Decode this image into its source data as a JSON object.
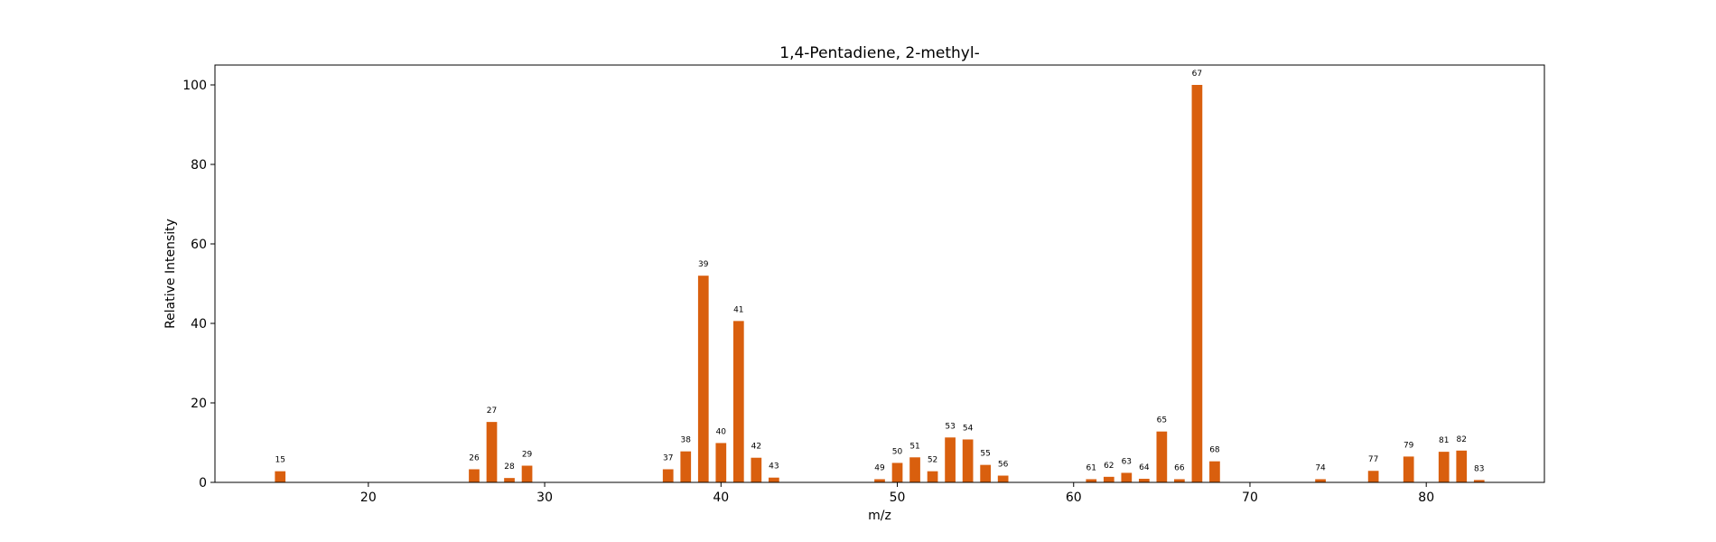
{
  "chart_data": {
    "type": "bar",
    "title": "1,4-Pentadiene, 2-methyl-",
    "xlabel": "m/z",
    "ylabel": "Relative Intensity",
    "xlim": [
      11.3,
      86.7
    ],
    "ylim": [
      0,
      105
    ],
    "xticks": [
      20,
      30,
      40,
      50,
      60,
      70,
      80
    ],
    "yticks": [
      0,
      20,
      40,
      60,
      80,
      100
    ],
    "bar_color": "#d95f0e",
    "legend": "none",
    "grid": false,
    "x": [
      15,
      26,
      27,
      28,
      29,
      37,
      38,
      39,
      40,
      41,
      42,
      43,
      49,
      50,
      51,
      52,
      53,
      54,
      55,
      56,
      61,
      62,
      63,
      64,
      65,
      66,
      67,
      68,
      74,
      77,
      79,
      81,
      82,
      83
    ],
    "values": [
      2.8,
      3.3,
      15.2,
      1.1,
      4.2,
      3.3,
      7.8,
      52.0,
      9.9,
      40.6,
      6.2,
      1.2,
      0.8,
      4.9,
      6.3,
      2.8,
      11.3,
      10.8,
      4.4,
      1.7,
      0.8,
      1.4,
      2.4,
      0.9,
      12.8,
      0.8,
      100.0,
      5.3,
      0.8,
      2.9,
      6.5,
      7.7,
      8.0,
      0.6
    ],
    "labels": [
      "15",
      "26",
      "27",
      "28",
      "29",
      "37",
      "38",
      "39",
      "40",
      "41",
      "42",
      "43",
      "49",
      "50",
      "51",
      "52",
      "53",
      "54",
      "55",
      "56",
      "61",
      "62",
      "63",
      "64",
      "65",
      "66",
      "67",
      "68",
      "74",
      "77",
      "79",
      "81",
      "82",
      "83"
    ]
  }
}
